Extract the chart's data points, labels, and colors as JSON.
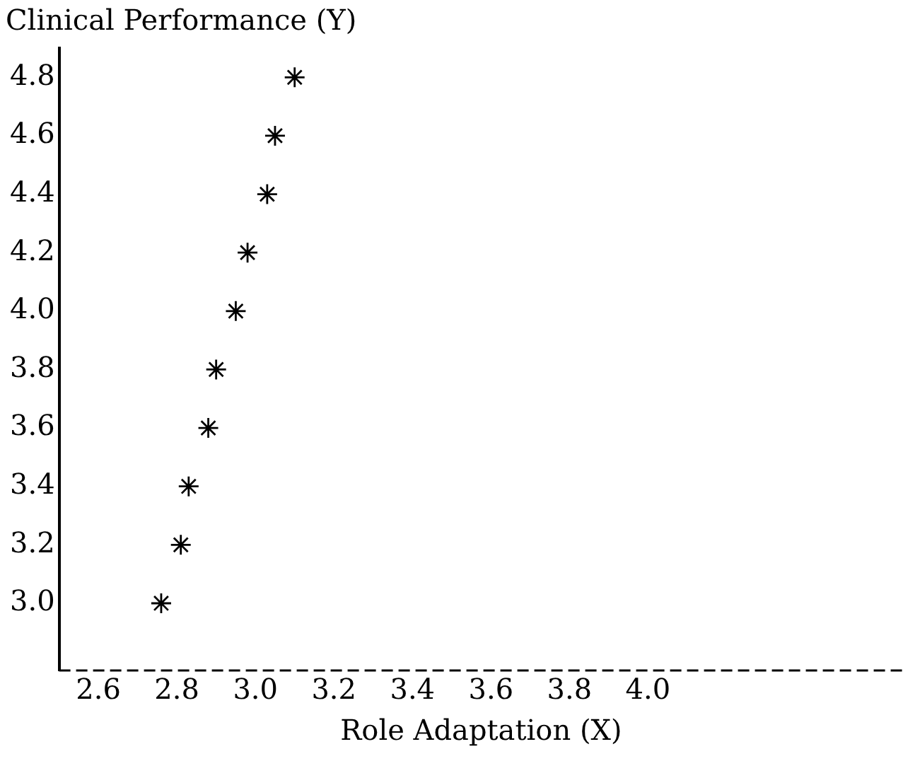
{
  "chart_data": {
    "type": "scatter",
    "title": "Clinical Performance (Y)",
    "xlabel": "Role Adaptation (X)",
    "x": [
      2.76,
      2.81,
      2.83,
      2.88,
      2.9,
      2.95,
      2.98,
      3.03,
      3.05,
      3.1
    ],
    "series": [
      {
        "color": "#000000",
        "values": [
          3.0,
          3.2,
          3.4,
          3.6,
          3.8,
          4.0,
          4.2,
          4.4,
          4.6,
          4.8
        ]
      }
    ],
    "xlim": [
      2.5,
      4.65
    ],
    "ylim": [
      2.77,
      4.9
    ],
    "xticks": [
      2.6,
      2.8,
      {
        "value": 3.0,
        "label": "3.0"
      },
      3.2,
      3.4,
      3.6,
      3.8,
      {
        "value": 4.0,
        "label": "4.0"
      }
    ],
    "yticks": [
      {
        "value": 3.0,
        "label": "3.0"
      },
      3.2,
      3.4,
      3.6,
      3.8,
      {
        "value": 4.0,
        "label": "4.0"
      },
      4.2,
      4.4,
      4.6,
      4.8
    ],
    "grid": false,
    "legend": false,
    "marker": "cross"
  }
}
